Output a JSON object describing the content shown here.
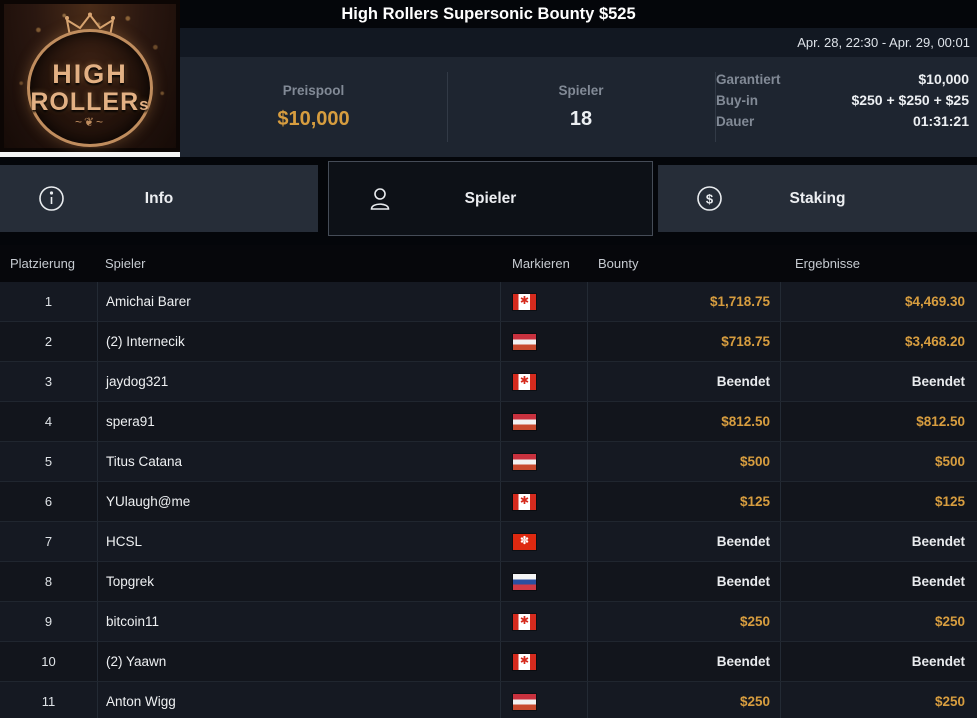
{
  "header": {
    "title": "High Rollers Supersonic Bounty $525",
    "date_range": "Apr. 28, 22:30 - Apr. 29, 00:01",
    "logo": {
      "word1": "HIGH",
      "word2": "ROLLER",
      "word2_suffix": "s",
      "flourish": "~❦~"
    }
  },
  "stats": {
    "prizepool_label": "Preispool",
    "prizepool_value": "$10,000",
    "players_label": "Spieler",
    "players_value": "18",
    "details": [
      {
        "label": "Garantiert",
        "value": "$10,000"
      },
      {
        "label": "Buy-in",
        "value": "$250 + $250 + $25"
      },
      {
        "label": "Dauer",
        "value": "01:31:21"
      }
    ]
  },
  "tabs": [
    {
      "label": "Info",
      "icon": "info-icon",
      "active": false
    },
    {
      "label": "Spieler",
      "icon": "person-icon",
      "active": true
    },
    {
      "label": "Staking",
      "icon": "dollar-circle-icon",
      "active": false
    }
  ],
  "table": {
    "columns": {
      "rank": "Platzierung",
      "player": "Spieler",
      "flag": "Markieren",
      "bounty": "Bounty",
      "result": "Ergebnisse"
    },
    "rows": [
      {
        "rank": "1",
        "player": "Amichai Barer",
        "flag": "canada",
        "bounty": "$1,718.75",
        "result": "$4,469.30"
      },
      {
        "rank": "2",
        "player": "(2) Internecik",
        "flag": "austria",
        "bounty": "$718.75",
        "result": "$3,468.20"
      },
      {
        "rank": "3",
        "player": "jaydog321",
        "flag": "canada",
        "bounty": "Beendet",
        "result": "Beendet"
      },
      {
        "rank": "4",
        "player": "spera91",
        "flag": "austria",
        "bounty": "$812.50",
        "result": "$812.50"
      },
      {
        "rank": "5",
        "player": "Titus Catana",
        "flag": "austria",
        "bounty": "$500",
        "result": "$500"
      },
      {
        "rank": "6",
        "player": "YUlaugh@me",
        "flag": "canada",
        "bounty": "$125",
        "result": "$125"
      },
      {
        "rank": "7",
        "player": "HCSL",
        "flag": "hongkong",
        "bounty": "Beendet",
        "result": "Beendet"
      },
      {
        "rank": "8",
        "player": "Topgrek",
        "flag": "russia",
        "bounty": "Beendet",
        "result": "Beendet"
      },
      {
        "rank": "9",
        "player": "bitcoin11",
        "flag": "canada",
        "bounty": "$250",
        "result": "$250"
      },
      {
        "rank": "10",
        "player": "(2) Yaawn",
        "flag": "canada",
        "bounty": "Beendet",
        "result": "Beendet"
      },
      {
        "rank": "11",
        "player": "Anton Wigg",
        "flag": "austria",
        "bounty": "$250",
        "result": "$250"
      }
    ]
  },
  "colors": {
    "accent_gold": "#d79d3f",
    "panel": "#1e2530",
    "row_dark": "#12151c",
    "row_light": "#151922",
    "tab_inactive": "#262d38",
    "tab_active": "#0d1117"
  },
  "flag_glyphs": {
    "canada": "✱",
    "hongkong": "✽"
  }
}
